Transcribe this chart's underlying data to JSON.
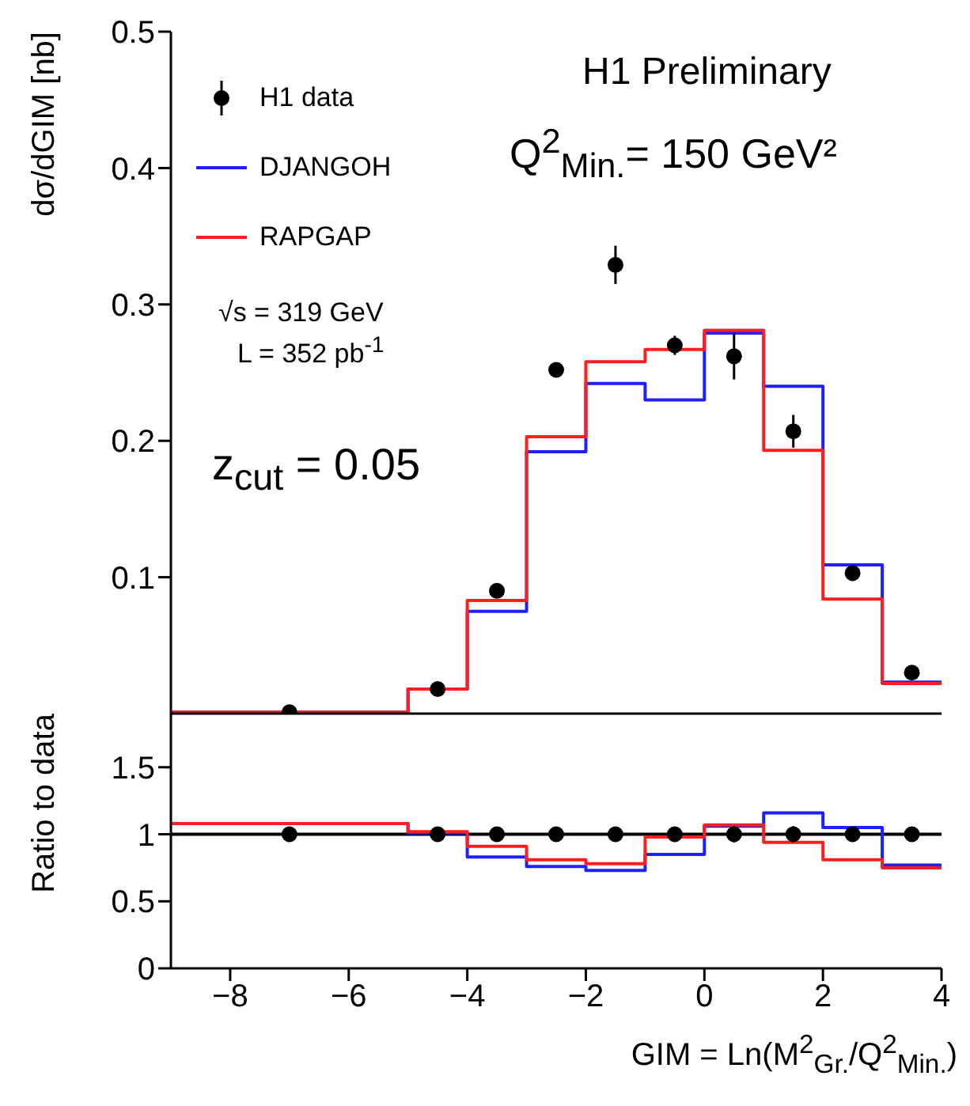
{
  "chart_data": [
    {
      "type": "histogram",
      "ylabel": "dσ/dGIM [nb]",
      "bins": [
        -9,
        -5,
        -4,
        -3,
        -2,
        -1,
        0,
        1,
        2,
        3,
        4
      ],
      "xlim": [
        -9,
        4
      ],
      "xticks": [
        -8,
        -6,
        -4,
        -2,
        0,
        2,
        4
      ],
      "ylim": [
        0,
        0.5
      ],
      "yticks": [
        0.1,
        0.2,
        0.3,
        0.4,
        0.5
      ],
      "tick_labels": "y",
      "legend": "top left",
      "annotations": [
        "H1 Preliminary",
        "Q$^{2}$$_{Min.}$= 150 GeV²",
        "√s = 319 GeV",
        "L = 352 pb$^{-1}$",
        "z$_{cut}$ = 0.05"
      ],
      "series": [
        {
          "name": "H1 data",
          "type": "scatter",
          "marker": "circle",
          "color": "#000000",
          "x": [
            -7,
            -4.5,
            -3.5,
            -2.5,
            -1.5,
            -0.5,
            0.5,
            1.5,
            2.5,
            3.5
          ],
          "values": [
            0.001,
            0.018,
            0.09,
            0.252,
            0.329,
            0.27,
            0.262,
            0.207,
            0.103,
            0.03
          ],
          "errors": [
            null,
            null,
            null,
            0.005,
            0.014,
            0.007,
            0.017,
            0.012,
            null,
            null
          ]
        },
        {
          "name": "DJANGOH",
          "type": "histogram",
          "color": "#1f1fff",
          "values": [
            0.001,
            0.018,
            0.075,
            0.192,
            0.242,
            0.23,
            0.279,
            0.24,
            0.109,
            0.023
          ]
        },
        {
          "name": "RAPGAP",
          "type": "histogram",
          "color": "#ff1f1f",
          "values": [
            0.001,
            0.018,
            0.083,
            0.203,
            0.258,
            0.267,
            0.281,
            0.193,
            0.084,
            0.022
          ]
        }
      ]
    },
    {
      "type": "histogram",
      "ylabel": "Ratio to data",
      "xlabel": "GIM = Ln(M$^{2}$$_{Gr.}$/Q$^{2}$$_{Min.}$)",
      "bins": [
        -9,
        -5,
        -4,
        -3,
        -2,
        -1,
        0,
        1,
        2,
        3,
        4
      ],
      "xlim": [
        -9,
        4
      ],
      "xticks": [
        -8,
        -6,
        -4,
        -2,
        0,
        2,
        4
      ],
      "ylim": [
        0,
        1.9
      ],
      "yticks": [
        0,
        0.5,
        1,
        1.5
      ],
      "ref_lines": [
        {
          "axis": "y",
          "value": 1,
          "color": "#000000"
        }
      ],
      "series": [
        {
          "type": "scatter",
          "marker": "circle",
          "color": "#000000",
          "x": [
            -7,
            -4.5,
            -3.5,
            -2.5,
            -1.5,
            -0.5,
            0.5,
            1.5,
            2.5,
            3.5
          ],
          "values": [
            1,
            1,
            1,
            1,
            1,
            1,
            1,
            1,
            1,
            1
          ],
          "errors": [
            null,
            null,
            null,
            0.02,
            0.04,
            0.03,
            0.06,
            0.06,
            null,
            null
          ]
        },
        {
          "type": "histogram",
          "color": "#1f1fff",
          "values": [
            1.08,
            1.01,
            0.83,
            0.76,
            0.73,
            0.85,
            1.06,
            1.16,
            1.05,
            0.77
          ]
        },
        {
          "type": "histogram",
          "color": "#ff1f1f",
          "values": [
            1.08,
            1.02,
            0.91,
            0.81,
            0.78,
            0.98,
            1.07,
            0.94,
            0.81,
            0.75
          ]
        }
      ]
    }
  ]
}
